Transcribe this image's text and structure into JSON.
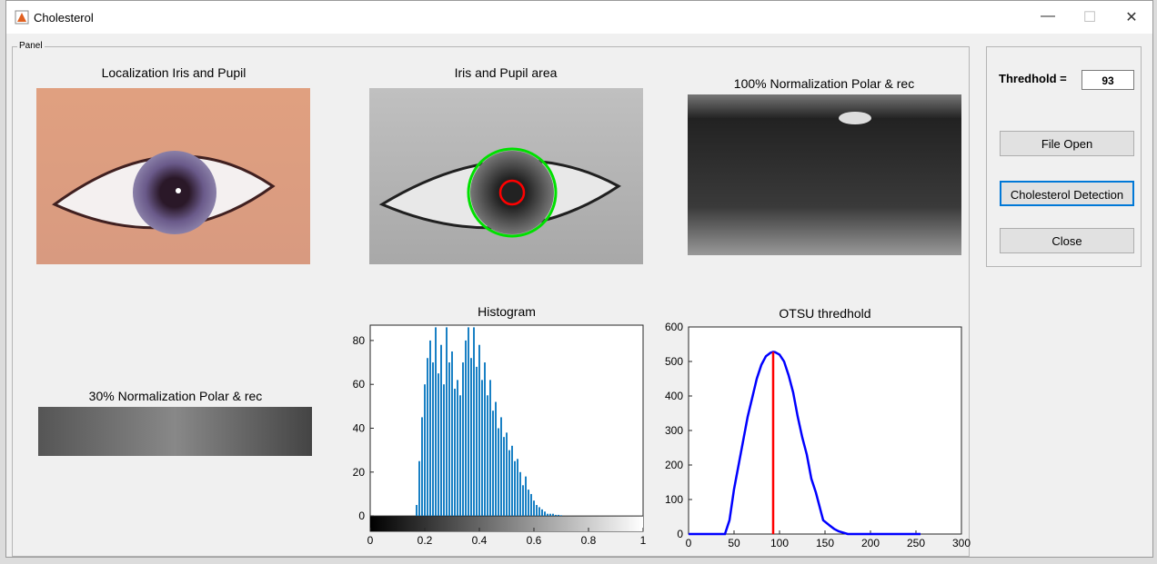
{
  "window": {
    "title": "Cholesterol"
  },
  "panel": {
    "label": "Panel"
  },
  "images": {
    "localization": "Localization Iris and Pupil",
    "iris_area": "Iris and Pupil area",
    "norm100": "100% Normalization Polar & rec",
    "norm30": "30% Normalization Polar & rec"
  },
  "controls": {
    "threshold_label": "Thredhold =",
    "threshold_value": "93",
    "file_open": "File Open",
    "detect": "Cholesterol Detection",
    "close": "Close"
  },
  "chart_data": [
    {
      "type": "bar",
      "title": "Histogram",
      "x": [
        0.17,
        0.18,
        0.19,
        0.2,
        0.21,
        0.22,
        0.23,
        0.24,
        0.25,
        0.26,
        0.27,
        0.28,
        0.29,
        0.3,
        0.31,
        0.32,
        0.33,
        0.34,
        0.35,
        0.36,
        0.37,
        0.38,
        0.39,
        0.4,
        0.41,
        0.42,
        0.43,
        0.44,
        0.45,
        0.46,
        0.47,
        0.48,
        0.49,
        0.5,
        0.51,
        0.52,
        0.53,
        0.54,
        0.55,
        0.56,
        0.57,
        0.58,
        0.59,
        0.6,
        0.61,
        0.62,
        0.63,
        0.64,
        0.65,
        0.66,
        0.67,
        0.68,
        0.69,
        0.7
      ],
      "values": [
        5,
        25,
        45,
        60,
        72,
        80,
        70,
        86,
        65,
        78,
        60,
        86,
        70,
        75,
        58,
        62,
        55,
        70,
        80,
        86,
        72,
        86,
        68,
        78,
        62,
        70,
        55,
        62,
        48,
        52,
        40,
        45,
        36,
        38,
        30,
        32,
        25,
        26,
        20,
        14,
        18,
        12,
        10,
        7,
        5,
        4,
        3,
        2,
        1,
        1,
        1,
        0.5,
        0.5,
        0.3
      ],
      "color": "#0072bd",
      "xlim": [
        0,
        1
      ],
      "ylim": [
        -7,
        87
      ],
      "xticks": [
        0,
        0.2,
        0.4,
        0.6,
        0.8,
        1
      ],
      "yticks": [
        0,
        20,
        40,
        60,
        80
      ]
    },
    {
      "type": "line",
      "title": "OTSU thredhold",
      "series": [
        {
          "color": "#0000ff",
          "x": [
            0,
            40,
            45,
            50,
            55,
            60,
            65,
            70,
            75,
            80,
            85,
            90,
            93,
            95,
            100,
            105,
            110,
            115,
            120,
            125,
            130,
            135,
            140,
            145,
            148,
            155,
            160,
            165,
            175,
            255
          ],
          "values": [
            0,
            0,
            40,
            130,
            200,
            270,
            340,
            395,
            450,
            490,
            515,
            525,
            528,
            527,
            520,
            500,
            460,
            410,
            340,
            280,
            230,
            160,
            120,
            70,
            40,
            25,
            15,
            8,
            0,
            0
          ]
        },
        {
          "color": "#ff0000",
          "x": [
            93,
            93
          ],
          "values": [
            0,
            528
          ]
        }
      ],
      "xlim": [
        0,
        300
      ],
      "ylim": [
        0,
        600
      ],
      "xticks": [
        0,
        50,
        100,
        150,
        200,
        250,
        300
      ],
      "yticks": [
        0,
        100,
        200,
        300,
        400,
        500,
        600
      ]
    }
  ]
}
